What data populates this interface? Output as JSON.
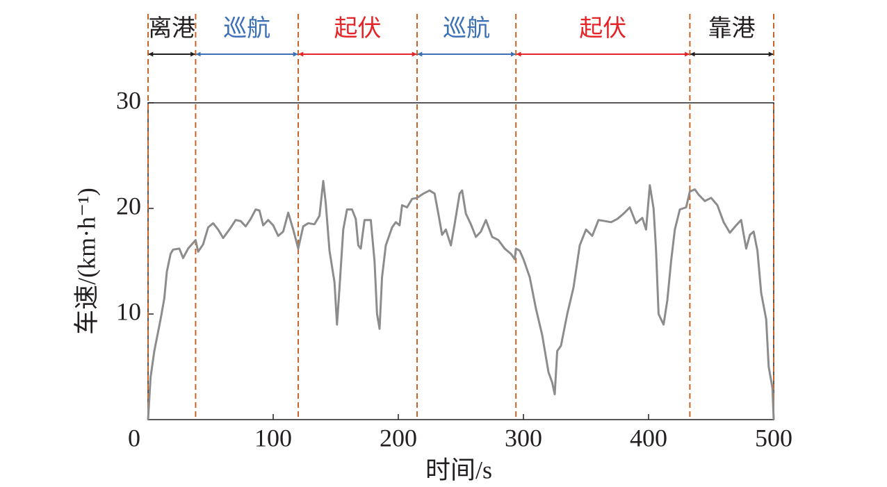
{
  "chart_data": {
    "type": "line",
    "xlabel": "时间/s",
    "ylabel": "车速/(km·h⁻¹)",
    "xlim": [
      0,
      500
    ],
    "ylim": [
      0,
      30
    ],
    "xticks": [
      0,
      100,
      200,
      300,
      400,
      500
    ],
    "yticks": [
      10,
      20,
      30
    ],
    "phases": [
      {
        "label": "离港",
        "start": 0,
        "end": 38,
        "color": "#231f20"
      },
      {
        "label": "巡航",
        "start": 38,
        "end": 120,
        "color": "#3b6fb6"
      },
      {
        "label": "起伏",
        "start": 120,
        "end": 215,
        "color": "#e52429"
      },
      {
        "label": "巡航",
        "start": 215,
        "end": 294,
        "color": "#3b6fb6"
      },
      {
        "label": "起伏",
        "start": 294,
        "end": 433,
        "color": "#e52429"
      },
      {
        "label": "靠港",
        "start": 433,
        "end": 500,
        "color": "#231f20"
      }
    ],
    "boundary_color": "#c8642a",
    "x": [
      0,
      2,
      5,
      10,
      13,
      15,
      18,
      20,
      25,
      28,
      32,
      38,
      40,
      44,
      48,
      52,
      56,
      60,
      65,
      70,
      74,
      78,
      82,
      86,
      89,
      92,
      96,
      100,
      104,
      108,
      112,
      116,
      120,
      124,
      128,
      133,
      137,
      140,
      142,
      145,
      149,
      151,
      153,
      156,
      159,
      163,
      166,
      168,
      170,
      173,
      178,
      181,
      183,
      185,
      187,
      190,
      195,
      198,
      201,
      203,
      207,
      211,
      215,
      220,
      225,
      229,
      232,
      235,
      238,
      242,
      245,
      249,
      251,
      254,
      258,
      262,
      266,
      270,
      275,
      280,
      285,
      290,
      293,
      294,
      297,
      300,
      305,
      310,
      315,
      320,
      323,
      325,
      327,
      330,
      335,
      340,
      345,
      350,
      355,
      360,
      365,
      370,
      375,
      380,
      385,
      390,
      395,
      398,
      401,
      404,
      406,
      408,
      412,
      415,
      418,
      421,
      425,
      430,
      433,
      437,
      440,
      445,
      450,
      455,
      460,
      465,
      470,
      474,
      478,
      481,
      484,
      487,
      490,
      494,
      496,
      499,
      500
    ],
    "series": [
      {
        "color": "#8c8c8c",
        "values": [
          0,
          4,
          6.5,
          9.5,
          11.5,
          14,
          15.7,
          16.1,
          16.2,
          15.3,
          16.2,
          17,
          15.9,
          16.6,
          18.2,
          18.6,
          18,
          17.2,
          18,
          18.9,
          18.8,
          18.3,
          19,
          19.9,
          19.8,
          18.4,
          18.9,
          18.4,
          17.4,
          17.8,
          19.6,
          18,
          16.2,
          18.3,
          18.6,
          18.5,
          19.3,
          22.6,
          20.5,
          16,
          13,
          9,
          12.5,
          18,
          19.9,
          19.9,
          19,
          16.5,
          16.2,
          18.9,
          18.9,
          15,
          10,
          8.6,
          13.5,
          16.5,
          18.2,
          18.7,
          18.4,
          20.3,
          20.1,
          20.9,
          21,
          21.4,
          21.7,
          21.4,
          19.5,
          17.5,
          18,
          16.5,
          18.5,
          21.4,
          21.7,
          19.5,
          18.5,
          17.3,
          17.8,
          18.9,
          17.3,
          17,
          16.2,
          15.7,
          15.2,
          16.2,
          16,
          15.2,
          13.5,
          10.5,
          8,
          4.5,
          3.5,
          2.4,
          6.5,
          7,
          10,
          12.5,
          16.5,
          18,
          17.4,
          18.9,
          18.8,
          18.7,
          19,
          19.5,
          20.1,
          18.6,
          19.1,
          18,
          22.2,
          20,
          16,
          10,
          9,
          11.3,
          15,
          18,
          19.9,
          20.1,
          21.6,
          21.8,
          21.3,
          20.7,
          21,
          20.3,
          18.7,
          17.7,
          18.4,
          18.9,
          16.2,
          17.5,
          17.8,
          16,
          12,
          9.5,
          5,
          3,
          0
        ]
      }
    ]
  }
}
